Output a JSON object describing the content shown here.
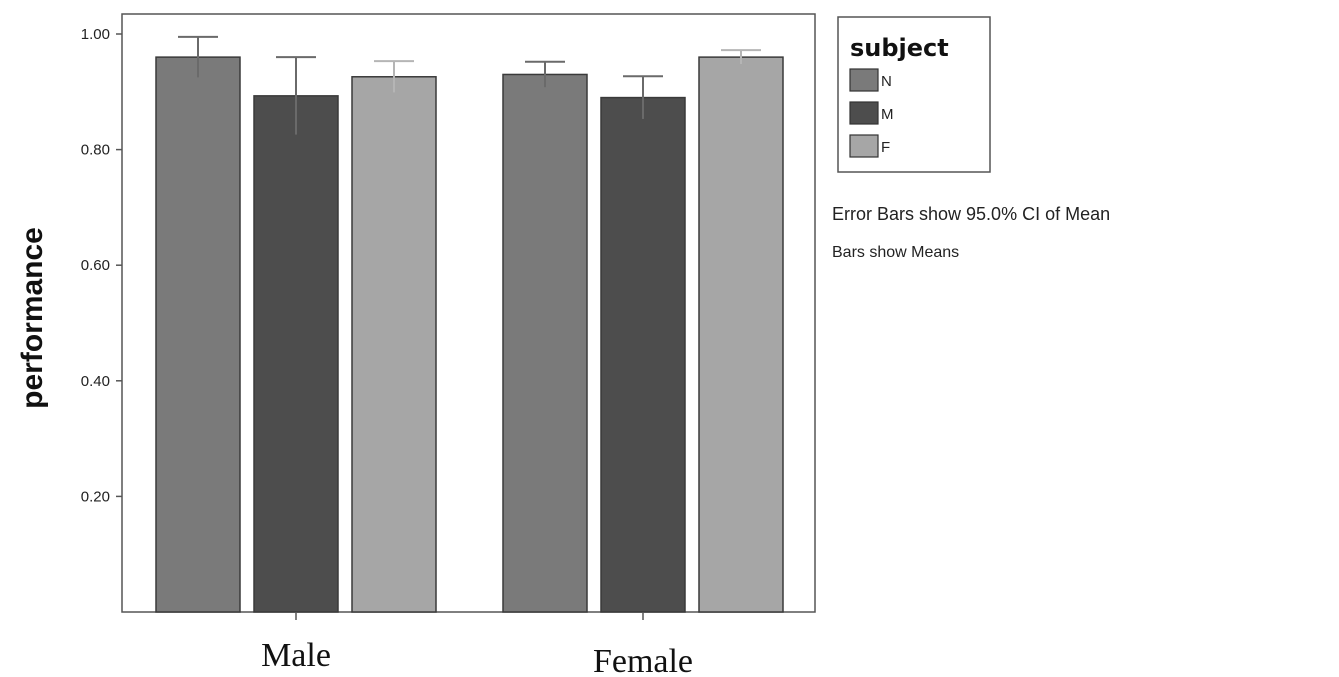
{
  "chart_data": {
    "type": "bar",
    "ylabel": "performance",
    "xlabel": "",
    "ylim": [
      0,
      1.0
    ],
    "yticks": [
      "0.20",
      "0.40",
      "0.60",
      "0.80",
      "1.00"
    ],
    "categories": [
      "Male",
      "Female"
    ],
    "legend": {
      "title": "subject",
      "placement": "right"
    },
    "series": [
      {
        "name": "N",
        "color": "#7a7a7a",
        "values": [
          0.96,
          0.93
        ],
        "ci_upper": [
          0.995,
          0.952
        ],
        "ci_lower": [
          0.925,
          0.908
        ]
      },
      {
        "name": "M",
        "color": "#4d4d4d",
        "values": [
          0.893,
          0.89
        ],
        "ci_upper": [
          0.96,
          0.927
        ],
        "ci_lower": [
          0.826,
          0.853
        ]
      },
      {
        "name": "F",
        "color": "#a6a6a6",
        "values": [
          0.926,
          0.96
        ],
        "ci_upper": [
          0.953,
          0.972
        ],
        "ci_lower": [
          0.899,
          0.948
        ]
      }
    ],
    "notes": [
      "Error Bars show 95.0% CI of Mean",
      "Bars show Means"
    ]
  }
}
